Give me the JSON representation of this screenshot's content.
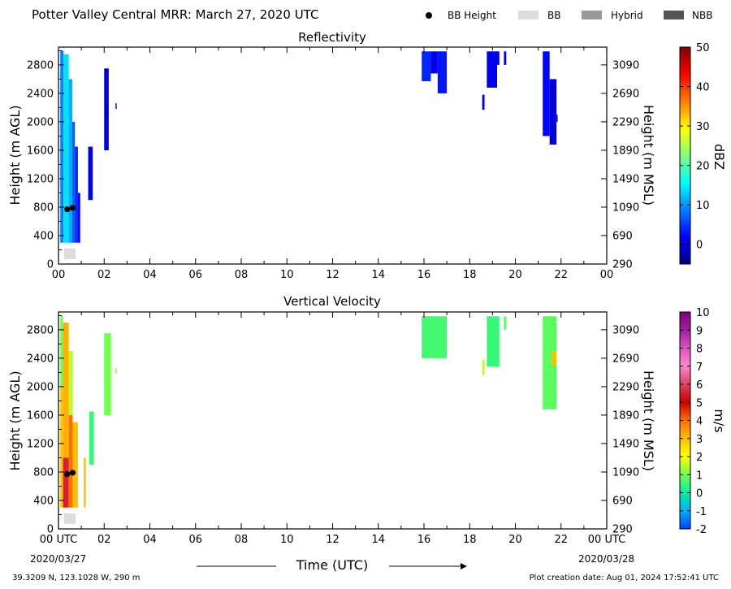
{
  "header": {
    "title": "Potter Valley Central MRR:  March 27, 2020 UTC",
    "legend": [
      {
        "label": "BB Height",
        "marker": "dot",
        "color": "#000000"
      },
      {
        "label": "BB",
        "marker": "rect",
        "color": "#dcdcdc"
      },
      {
        "label": "Hybrid",
        "marker": "rect",
        "color": "#999999"
      },
      {
        "label": "NBB",
        "marker": "rect",
        "color": "#555555"
      }
    ]
  },
  "footer": {
    "coords": "39.3209 N, 123.1028 W, 290 m",
    "creation": "Plot creation date: Aug 01, 2024 17:52:41 UTC",
    "xlabel": "Time (UTC)",
    "start_label": "00 UTC",
    "start_date": "2020/03/27",
    "end_label": "00 UTC",
    "end_date": "2020/03/28"
  },
  "chart_data": [
    {
      "type": "heatmap",
      "title": "Reflectivity",
      "ylabel": "Height (m AGL)",
      "y2label": "Height (m MSL)",
      "xlim": [
        0,
        24
      ],
      "ylim": [
        0,
        3050
      ],
      "x_ticks": [
        "00",
        "02",
        "04",
        "06",
        "08",
        "10",
        "12",
        "14",
        "16",
        "18",
        "20",
        "22",
        "00"
      ],
      "y_ticks": [
        0,
        400,
        800,
        1200,
        1600,
        2000,
        2400,
        2800
      ],
      "y2_ticks": [
        290,
        690,
        1090,
        1490,
        1890,
        2290,
        2690,
        3090
      ],
      "colorbar": {
        "label": "dBZ",
        "range": [
          -5,
          50
        ],
        "ticks": [
          0,
          10,
          20,
          30,
          40,
          50
        ],
        "colors": [
          "#00007f",
          "#0000ff",
          "#007fff",
          "#00ffff",
          "#7fff7f",
          "#ffff00",
          "#ff7f00",
          "#ff0000",
          "#7f0000"
        ]
      },
      "echoes": [
        {
          "t": [
            0.08,
            0.22
          ],
          "h": [
            300,
            3000
          ],
          "v": 9
        },
        {
          "t": [
            0.22,
            0.45
          ],
          "h": [
            300,
            2950
          ],
          "v": 14
        },
        {
          "t": [
            0.45,
            0.6
          ],
          "h": [
            300,
            2600
          ],
          "v": 11
        },
        {
          "t": [
            0.6,
            0.72
          ],
          "h": [
            300,
            2000
          ],
          "v": 7
        },
        {
          "t": [
            0.72,
            0.85
          ],
          "h": [
            300,
            1650
          ],
          "v": 4
        },
        {
          "t": [
            0.85,
            0.95
          ],
          "h": [
            300,
            1000
          ],
          "v": 2
        },
        {
          "t": [
            1.3,
            1.5
          ],
          "h": [
            900,
            1650
          ],
          "v": 1
        },
        {
          "t": [
            2.0,
            2.2
          ],
          "h": [
            1600,
            2750
          ],
          "v": 0
        },
        {
          "t": [
            2.5,
            2.55
          ],
          "h": [
            2180,
            2260
          ],
          "v": 1
        },
        {
          "t": [
            15.9,
            16.3
          ],
          "h": [
            2570,
            2990
          ],
          "v": 4
        },
        {
          "t": [
            16.3,
            16.6
          ],
          "h": [
            2680,
            2990
          ],
          "v": 1
        },
        {
          "t": [
            16.6,
            17.0
          ],
          "h": [
            2400,
            2990
          ],
          "v": 3
        },
        {
          "t": [
            18.55,
            18.65
          ],
          "h": [
            2170,
            2380
          ],
          "v": 0
        },
        {
          "t": [
            18.75,
            19.2
          ],
          "h": [
            2480,
            2990
          ],
          "v": 1
        },
        {
          "t": [
            19.2,
            19.3
          ],
          "h": [
            2800,
            2990
          ],
          "v": 1
        },
        {
          "t": [
            19.5,
            19.6
          ],
          "h": [
            2800,
            2990
          ],
          "v": 1
        },
        {
          "t": [
            21.2,
            21.5
          ],
          "h": [
            1800,
            2990
          ],
          "v": 2
        },
        {
          "t": [
            21.5,
            21.8
          ],
          "h": [
            1680,
            2600
          ],
          "v": 0
        },
        {
          "t": [
            21.8,
            21.85
          ],
          "h": [
            2000,
            2100
          ],
          "v": -1
        }
      ],
      "bb_height": [
        {
          "t": 0.38,
          "h": 770
        },
        {
          "t": 0.62,
          "h": 790
        }
      ],
      "bb_type": [
        {
          "t": [
            0.25,
            0.75
          ],
          "label": "BB"
        }
      ]
    },
    {
      "type": "heatmap",
      "title": "Vertical Velocity",
      "ylabel": "Height (m AGL)",
      "y2label": "Height (m MSL)",
      "xlim": [
        0,
        24
      ],
      "ylim": [
        0,
        3050
      ],
      "x_ticks": [
        "00 UTC",
        "02",
        "04",
        "06",
        "08",
        "10",
        "12",
        "14",
        "16",
        "18",
        "20",
        "22",
        "00 UTC"
      ],
      "y_ticks": [
        0,
        400,
        800,
        1200,
        1600,
        2000,
        2400,
        2800
      ],
      "y2_ticks": [
        290,
        690,
        1090,
        1490,
        1890,
        2290,
        2690,
        3090
      ],
      "colorbar": {
        "label": "m/s",
        "range": [
          -2,
          10
        ],
        "ticks": [
          -2,
          -1,
          0,
          1,
          2,
          3,
          4,
          5,
          6,
          7,
          8,
          9,
          10
        ],
        "colors": [
          "#0040ff",
          "#00b0ff",
          "#00f0a0",
          "#70ff50",
          "#ffff00",
          "#ffc000",
          "#ff7000",
          "#cc0000",
          "#e04060",
          "#ff88cc",
          "#e050c0",
          "#a020a0",
          "#800080"
        ]
      },
      "echoes": [
        {
          "t": [
            0.08,
            0.2
          ],
          "h": [
            2000,
            3000
          ],
          "v": 1
        },
        {
          "t": [
            0.08,
            0.2
          ],
          "h": [
            300,
            2000
          ],
          "v": 3
        },
        {
          "t": [
            0.2,
            0.45
          ],
          "h": [
            1000,
            2900
          ],
          "v": 3.2
        },
        {
          "t": [
            0.2,
            0.45
          ],
          "h": [
            300,
            1000
          ],
          "v": 5.5
        },
        {
          "t": [
            0.45,
            0.62
          ],
          "h": [
            1600,
            2500
          ],
          "v": 1.5
        },
        {
          "t": [
            0.45,
            0.62
          ],
          "h": [
            300,
            1600
          ],
          "v": 4
        },
        {
          "t": [
            0.62,
            0.85
          ],
          "h": [
            300,
            1500
          ],
          "v": 3
        },
        {
          "t": [
            1.1,
            1.2
          ],
          "h": [
            300,
            1000
          ],
          "v": 2.8
        },
        {
          "t": [
            1.35,
            1.55
          ],
          "h": [
            900,
            1650
          ],
          "v": 0.5
        },
        {
          "t": [
            2.0,
            2.3
          ],
          "h": [
            1600,
            2750
          ],
          "v": 1
        },
        {
          "t": [
            2.5,
            2.55
          ],
          "h": [
            2180,
            2260
          ],
          "v": 1
        },
        {
          "t": [
            15.9,
            17.0
          ],
          "h": [
            2400,
            2990
          ],
          "v": 0.6
        },
        {
          "t": [
            18.55,
            18.65
          ],
          "h": [
            2170,
            2380
          ],
          "v": 1.5
        },
        {
          "t": [
            18.75,
            19.3
          ],
          "h": [
            2280,
            2990
          ],
          "v": 0.5
        },
        {
          "t": [
            19.5,
            19.6
          ],
          "h": [
            2800,
            2990
          ],
          "v": 0.8
        },
        {
          "t": [
            21.2,
            21.8
          ],
          "h": [
            1680,
            2990
          ],
          "v": 0.8
        },
        {
          "t": [
            21.6,
            21.8
          ],
          "h": [
            2300,
            2500
          ],
          "v": 3
        }
      ],
      "bb_height": [
        {
          "t": 0.38,
          "h": 770
        },
        {
          "t": 0.62,
          "h": 790
        }
      ],
      "bb_type": [
        {
          "t": [
            0.25,
            0.75
          ],
          "label": "BB"
        }
      ]
    }
  ]
}
